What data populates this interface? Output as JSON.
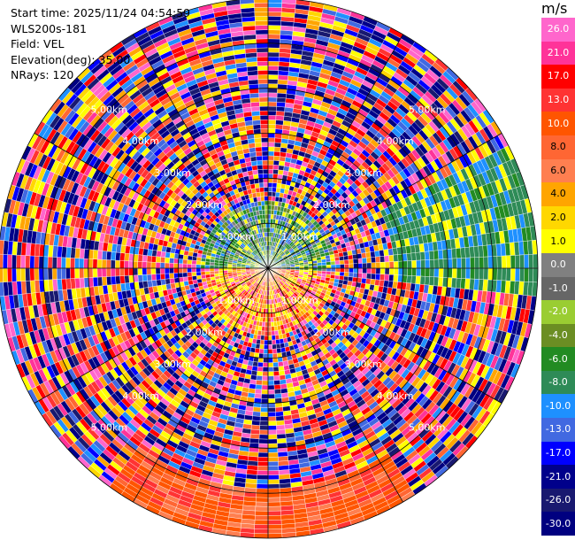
{
  "info": {
    "start_time": "Start time: 2025/11/24 04:54:59",
    "station": "WLS200s-181",
    "field": "Field: VEL",
    "elevation": "Elevation(deg): 35.00",
    "nrays": "NRays: 120"
  },
  "ppi": {
    "range_rings_km": [
      1,
      2,
      3,
      4,
      5
    ],
    "ring_labels": [
      "1.00km",
      "2.00km",
      "3.00km",
      "4.00km",
      "5.00km"
    ],
    "nrays": 120
  },
  "colorbar": {
    "unit": "m/s",
    "labels": [
      "26.0",
      "21.0",
      "17.0",
      "13.0",
      "10.0",
      "8.0",
      "6.0",
      "4.0",
      "2.0",
      "1.0",
      "0.0",
      "-1.0",
      "-2.0",
      "-4.0",
      "-6.0",
      "-8.0",
      "-10.0",
      "-13.0",
      "-17.0",
      "-21.0",
      "-26.0",
      "-30.0"
    ],
    "colors": [
      "#ff66cc",
      "#ff3399",
      "#ff0000",
      "#ff3333",
      "#ff5500",
      "#ff6633",
      "#ff7f50",
      "#ffa500",
      "#ffd700",
      "#ffff00",
      "#808080",
      "#666666",
      "#9acd32",
      "#6b8e23",
      "#228b22",
      "#2e8b57",
      "#1e90ff",
      "#4169e1",
      "#0000ff",
      "#00008b",
      "#191970",
      "#000080"
    ]
  }
}
